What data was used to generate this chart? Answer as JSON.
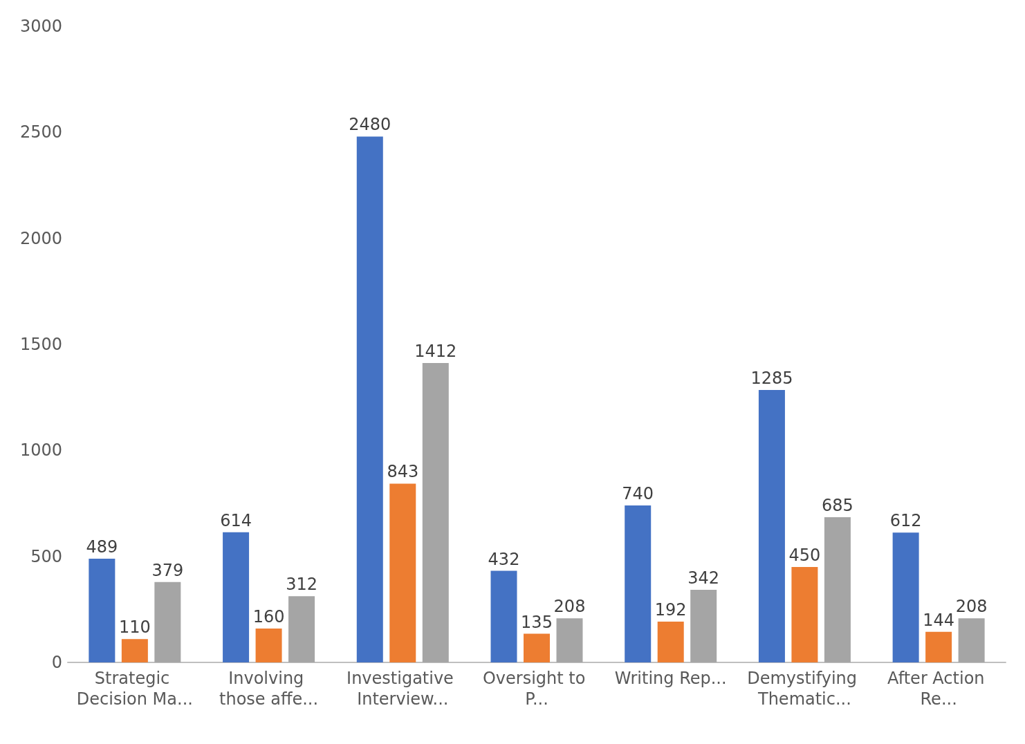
{
  "chart_data": {
    "type": "bar",
    "categories": [
      "Strategic Decision Ma...",
      "Involving those affe...",
      "Investigative Interview...",
      "Oversight to P...",
      "Writing Rep...",
      "Demystifying Thematic...",
      "After Action Re..."
    ],
    "series": [
      {
        "color": "#4472c4",
        "values": [
          489,
          614,
          2480,
          432,
          740,
          1285,
          612
        ]
      },
      {
        "color": "#ed7d31",
        "values": [
          110,
          160,
          843,
          135,
          192,
          450,
          144
        ]
      },
      {
        "color": "#a5a5a5",
        "values": [
          379,
          312,
          1412,
          208,
          342,
          685,
          208
        ]
      }
    ],
    "ylim": [
      0,
      3000
    ],
    "yticks": [
      0,
      500,
      1000,
      1500,
      2000,
      2500,
      3000
    ],
    "grid": false,
    "data_labels": true
  }
}
